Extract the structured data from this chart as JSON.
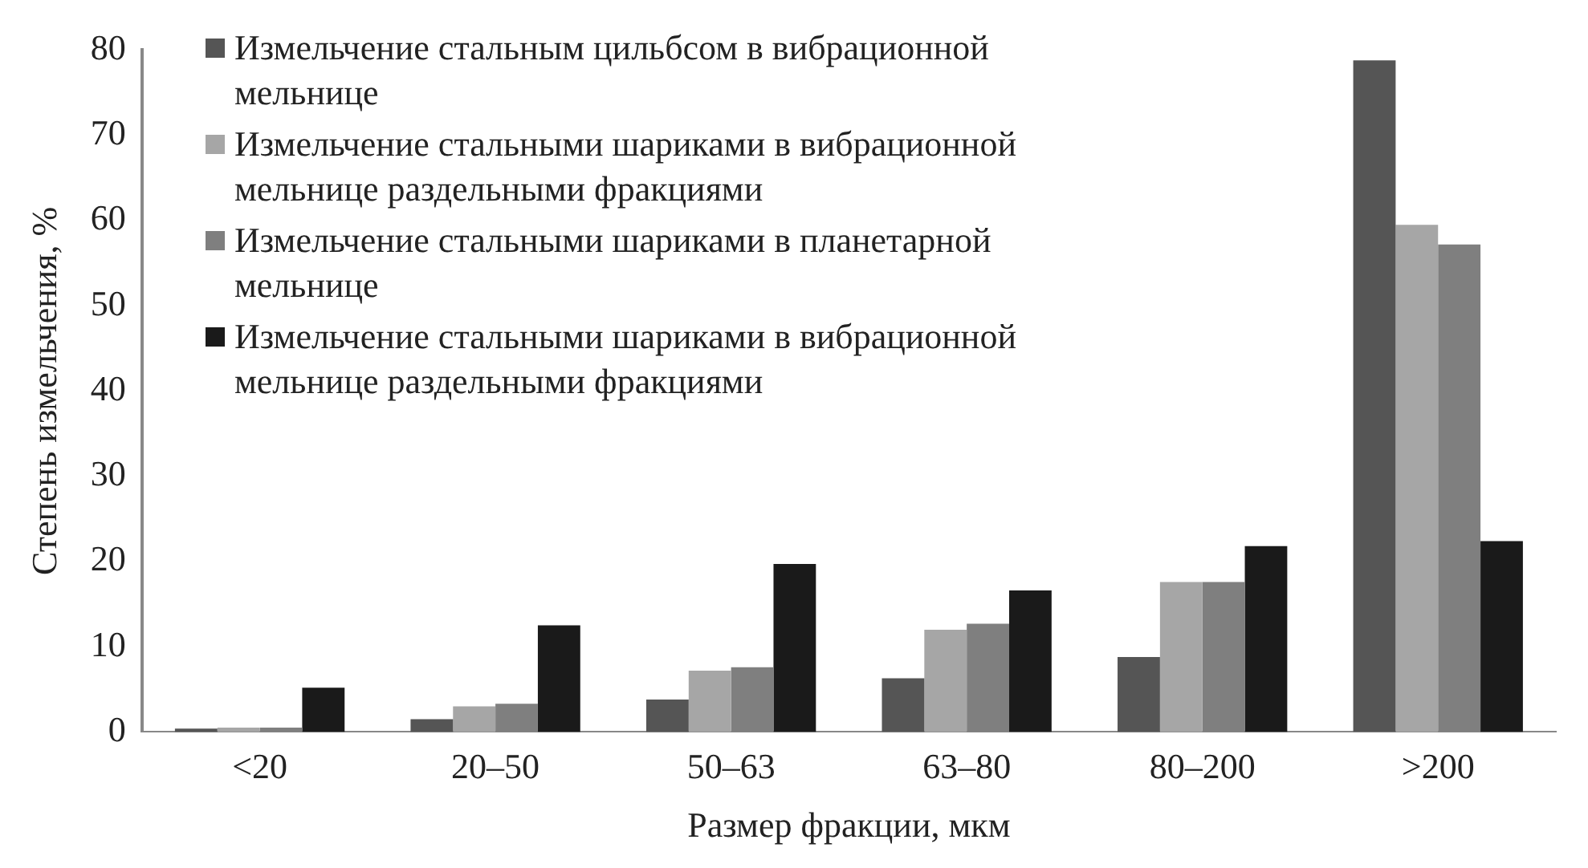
{
  "chart_data": {
    "type": "bar",
    "xlabel": "Размер фракции, мкм",
    "ylabel": "Степень измельчения, %",
    "categories": [
      "<20",
      "20–50",
      "50–63",
      "63–80",
      "80–200",
      ">200"
    ],
    "series": [
      {
        "name": "Измельчение стальным цильбсом в вибрационной мельнице",
        "color": "#555555",
        "values": [
          0.4,
          1.5,
          3.8,
          6.3,
          8.8,
          78.8
        ]
      },
      {
        "name": "Измельчение стальными шариками в вибрационной мельнице раздельными фракциями",
        "color": "#a6a6a6",
        "values": [
          0.5,
          3,
          7.2,
          12,
          17.6,
          59.5
        ]
      },
      {
        "name": "Измельчение стальными шариками в планетарной мельнице",
        "color": "#7f7f7f",
        "values": [
          0.5,
          3.3,
          7.6,
          12.7,
          17.6,
          57.2
        ]
      },
      {
        "name": "Измельчение стальными шариками в вибрационной мельнице раздельными фракциями",
        "color": "#1a1a1a",
        "values": [
          5.2,
          12.5,
          19.7,
          16.6,
          21.8,
          22.4
        ]
      }
    ],
    "ylim": [
      0,
      80
    ],
    "yticks": [
      0,
      10,
      20,
      30,
      40,
      50,
      60,
      70,
      80
    ],
    "grid": false,
    "legend": "top left"
  }
}
